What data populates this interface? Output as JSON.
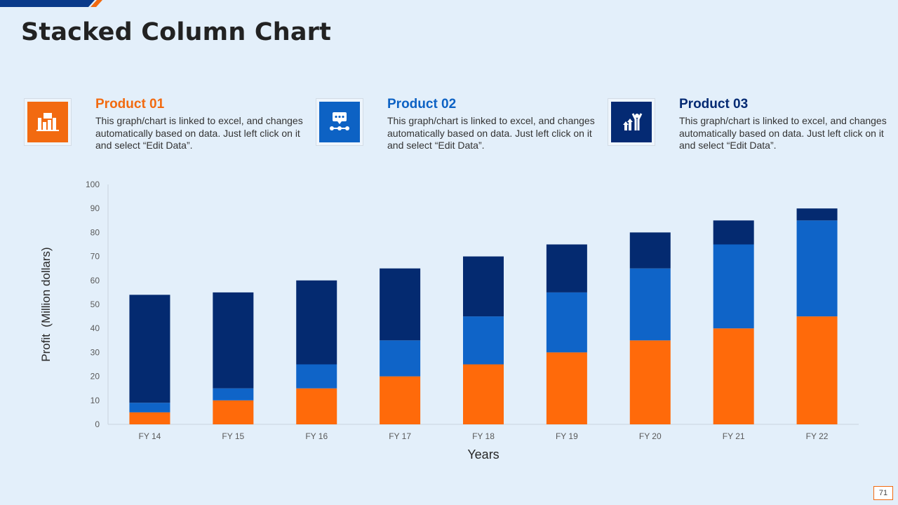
{
  "page": {
    "title": "Stacked Column Chart",
    "page_number": "71"
  },
  "products": [
    {
      "title": "Product 01",
      "description": "This graph/chart is linked to excel, and changes automatically based on data. Just left click on it and select “Edit Data”.",
      "icon": "bar-chart-icon",
      "color": "#f26a10"
    },
    {
      "title": "Product 02",
      "description": "This graph/chart is linked to excel, and changes automatically based on data. Just left click on it and select “Edit Data”.",
      "icon": "chat-network-icon",
      "color": "#0d62c4"
    },
    {
      "title": "Product 03",
      "description": "This graph/chart is linked to excel, and changes automatically based on data. Just left click on it and select “Edit Data”.",
      "icon": "growth-person-icon",
      "color": "#042a73"
    }
  ],
  "chart_data": {
    "type": "bar",
    "stacked": true,
    "categories": [
      "FY 14",
      "FY 15",
      "FY 16",
      "FY 17",
      "FY 18",
      "FY 19",
      "FY 20",
      "FY 21",
      "FY 22"
    ],
    "series": [
      {
        "color": "#ff6a0a",
        "values": [
          5,
          10,
          15,
          20,
          25,
          30,
          35,
          40,
          45
        ]
      },
      {
        "color": "#0f64c8",
        "values": [
          4,
          5,
          10,
          15,
          20,
          25,
          30,
          35,
          40
        ]
      },
      {
        "color": "#042a70",
        "values": [
          45,
          40,
          35,
          30,
          25,
          20,
          15,
          10,
          5
        ]
      }
    ],
    "xlabel": "Years",
    "ylabel": "Profit  (Million dollars)",
    "ylim": [
      0,
      100
    ],
    "yticks": [
      0,
      10,
      20,
      30,
      40,
      50,
      60,
      70,
      80,
      90,
      100
    ],
    "grid": false,
    "legend": "none"
  }
}
